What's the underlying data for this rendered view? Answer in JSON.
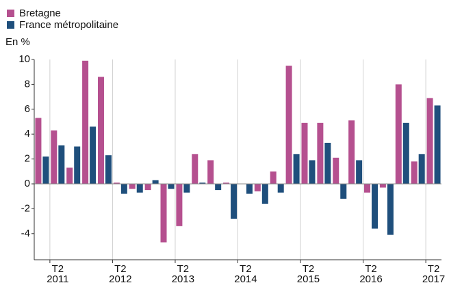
{
  "chart_data": {
    "type": "bar",
    "y_label": "En %",
    "categories": [
      null,
      "T2 2011",
      null,
      null,
      null,
      "T2 2012",
      null,
      null,
      null,
      "T2 2013",
      null,
      null,
      null,
      "T2 2014",
      null,
      null,
      null,
      "T2 2015",
      null,
      null,
      null,
      "T2 2016",
      null,
      null,
      null,
      "T2 2017"
    ],
    "series": [
      {
        "name": "Bretagne",
        "color": "#b5508f",
        "values": [
          5.3,
          4.3,
          1.3,
          9.9,
          8.6,
          0.1,
          -0.4,
          -0.5,
          -4.7,
          -3.4,
          2.4,
          1.9,
          0.1,
          0,
          -0.6,
          1.0,
          9.5,
          4.9,
          4.9,
          2.1,
          5.1,
          -0.7,
          -0.3,
          8.0,
          1.8,
          6.9
        ]
      },
      {
        "name": "France métropolitaine",
        "color": "#1f4f7c",
        "values": [
          2.2,
          3.1,
          3.0,
          4.6,
          2.3,
          -0.8,
          -0.7,
          0.3,
          -0.4,
          -0.7,
          0.1,
          -0.5,
          -2.8,
          -0.8,
          -1.6,
          -0.7,
          2.4,
          1.9,
          3.3,
          -1.2,
          1.9,
          -3.6,
          -4.1,
          4.9,
          2.4,
          6.3
        ]
      }
    ],
    "ylim": [
      -6.1,
      10
    ],
    "yticks": [
      -4,
      -2,
      0,
      2,
      4,
      6,
      8,
      10
    ],
    "grid": false
  }
}
